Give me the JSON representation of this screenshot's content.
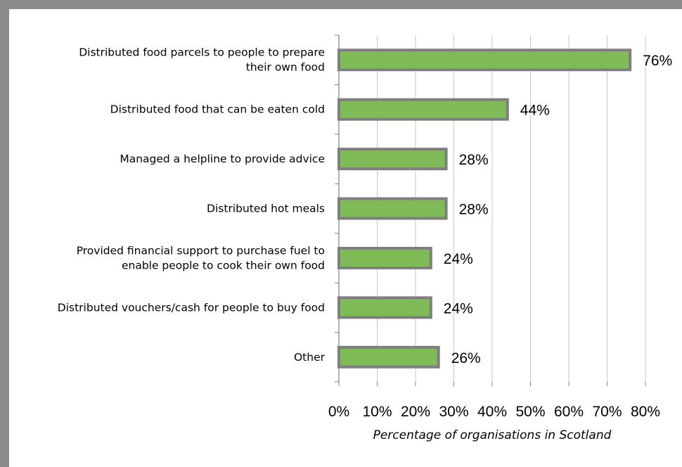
{
  "chart_data": {
    "type": "bar",
    "orientation": "horizontal",
    "categories": [
      "Distributed food parcels to people to prepare their own food",
      "Distributed food that can be eaten cold",
      "Managed a helpline to provide advice",
      "Distributed hot meals",
      "Provided financial support to purchase fuel to enable people to cook their own food",
      "Distributed vouchers/cash for people to buy food",
      "Other"
    ],
    "category_lines": [
      [
        "Distributed food parcels to people to prepare",
        "their own food"
      ],
      [
        "Distributed food that can be eaten cold"
      ],
      [
        "Managed a helpline to provide advice"
      ],
      [
        "Distributed hot meals"
      ],
      [
        "Provided financial support to purchase fuel to",
        "enable people to cook their own food"
      ],
      [
        "Distributed vouchers/cash for people to buy food"
      ],
      [
        "Other"
      ]
    ],
    "values": [
      76,
      44,
      28,
      28,
      24,
      24,
      26
    ],
    "value_labels": [
      "76%",
      "44%",
      "28%",
      "28%",
      "24%",
      "24%",
      "26%"
    ],
    "xlabel": "Percentage of organisations in Scotland",
    "xlim": [
      0,
      80
    ],
    "xticks": [
      0,
      10,
      20,
      30,
      40,
      50,
      60,
      70,
      80
    ],
    "xtick_labels": [
      "0%",
      "10%",
      "20%",
      "30%",
      "40%",
      "50%",
      "60%",
      "70%",
      "80%"
    ],
    "grid": "vertical",
    "bar_color": "#7fbb57",
    "bar_border_color": "#7f7f7f",
    "grid_color": "#c8c8c8",
    "frame_color": "#8c8c8c"
  }
}
